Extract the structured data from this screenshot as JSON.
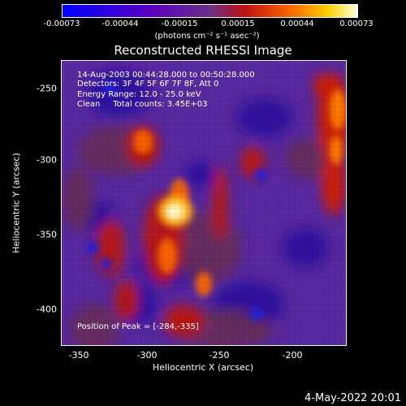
{
  "colorbar": {
    "ticks": [
      "-0.00073",
      "-0.00044",
      "-0.00015",
      "0.00015",
      "0.00044",
      "0.00073"
    ],
    "unit_label": "(photons cm⁻² s⁻¹ asec⁻²)"
  },
  "title": "Reconstructed RHESSI Image",
  "info": {
    "time_range": "14-Aug-2003 00:44:28.000 to 00:50:28.000",
    "detectors": "Detectors: 3F 4F 5F 6F 7F 8F, Att 0",
    "energy": "Energy Range: 12.0 - 25.0 keV",
    "clean": "Clean     Total counts: 3.45E+03",
    "peak": "Position of Peak = [-284,-335]"
  },
  "axes": {
    "xlabel": "Heliocentric X (arcsec)",
    "ylabel": "Heliocentric Y (arcsec)",
    "xticks": [
      "-350",
      "-300",
      "-250",
      "-200"
    ],
    "yticks": [
      "-250",
      "-300",
      "-350",
      "-400"
    ]
  },
  "footer": "4-May-2022 20:01",
  "colors": {
    "background": "#000000",
    "colormap": [
      "#0000ff",
      "#4a00b0",
      "#6b2fa0",
      "#b01c1c",
      "#ff5a00",
      "#ffd000",
      "#ffffe0"
    ]
  }
}
